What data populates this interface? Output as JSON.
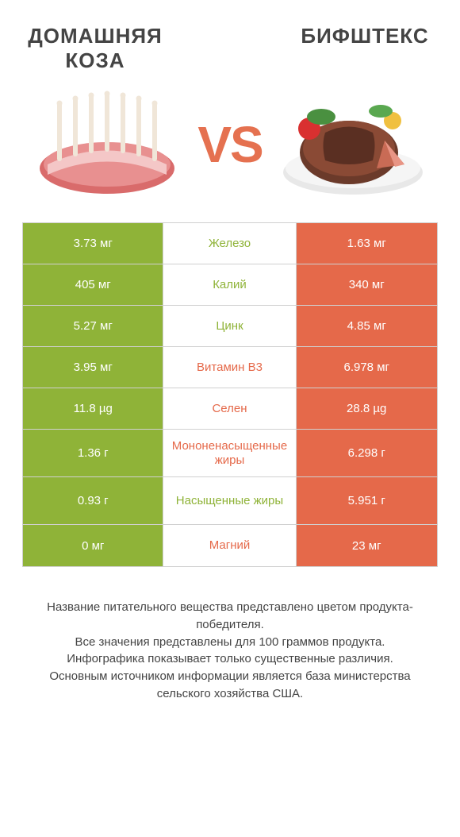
{
  "header": {
    "left_title": "ДОМАШНЯЯ КОЗА",
    "right_title": "БИФШТЕКС",
    "vs_label": "VS"
  },
  "colors": {
    "left": "#8fb338",
    "right": "#e5694a",
    "border": "#d0d0d0",
    "vs": "#e57150",
    "text": "#444444",
    "bg": "#ffffff"
  },
  "table": {
    "rows": [
      {
        "left": "3.73 мг",
        "label": "Железо",
        "right": "1.63 мг",
        "winner": "left",
        "big": false
      },
      {
        "left": "405 мг",
        "label": "Калий",
        "right": "340 мг",
        "winner": "left",
        "big": false
      },
      {
        "left": "5.27 мг",
        "label": "Цинк",
        "right": "4.85 мг",
        "winner": "left",
        "big": false
      },
      {
        "left": "3.95 мг",
        "label": "Витамин B3",
        "right": "6.978 мг",
        "winner": "right",
        "big": false
      },
      {
        "left": "11.8 µg",
        "label": "Селен",
        "right": "28.8 µg",
        "winner": "right",
        "big": false
      },
      {
        "left": "1.36 г",
        "label": "Мононенасыщенные жиры",
        "right": "6.298 г",
        "winner": "right",
        "big": true
      },
      {
        "left": "0.93 г",
        "label": "Насыщенные жиры",
        "right": "5.951 г",
        "winner": "left",
        "big": true
      },
      {
        "left": "0 мг",
        "label": "Магний",
        "right": "23 мг",
        "winner": "right",
        "big": false
      }
    ]
  },
  "footnote": {
    "line1": "Название питательного вещества представлено цветом продукта-победителя.",
    "line2": "Все значения представлены для 100 граммов продукта.",
    "line3": "Инфографика показывает только существенные различия.",
    "line4": "Основным источником информации является база министерства сельского хозяйства США."
  }
}
